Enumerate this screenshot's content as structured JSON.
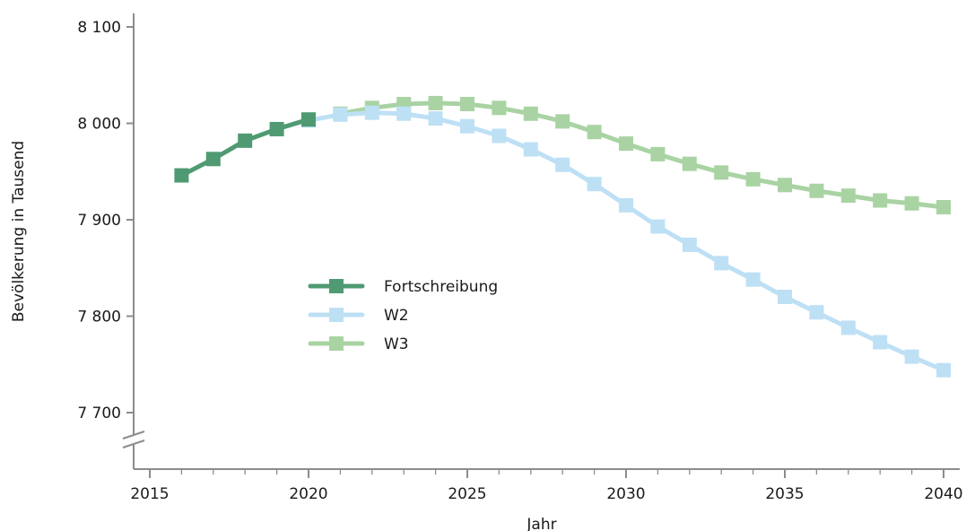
{
  "chart_data": {
    "type": "line",
    "title": "",
    "xlabel": "Jahr",
    "ylabel": "Bevölkerung in Tausend",
    "xlim": [
      2015,
      2040
    ],
    "ylim": [
      7700,
      8100
    ],
    "x_ticks": [
      2015,
      2020,
      2025,
      2030,
      2035,
      2040
    ],
    "x_tick_labels": [
      "2015",
      "2020",
      "2025",
      "2030",
      "2035",
      "2040"
    ],
    "y_ticks": [
      7700,
      7800,
      7900,
      8000,
      8100
    ],
    "y_tick_labels": [
      "7 700",
      "7 800",
      "7 900",
      "8 000",
      "8 100"
    ],
    "y_axis_break": true,
    "grid": false,
    "legend_position": "center-left",
    "series": [
      {
        "name": "Fortschreibung",
        "color": "#4f9a72",
        "x": [
          2016,
          2017,
          2018,
          2019,
          2020
        ],
        "values": [
          7946,
          7963,
          7982,
          7994,
          8004
        ]
      },
      {
        "name": "W2",
        "color": "#bde0f5",
        "x": [
          2020,
          2021,
          2022,
          2023,
          2024,
          2025,
          2026,
          2027,
          2028,
          2029,
          2030,
          2031,
          2032,
          2033,
          2034,
          2035,
          2036,
          2037,
          2038,
          2039,
          2040
        ],
        "values": [
          8003,
          8009,
          8011,
          8010,
          8005,
          7997,
          7987,
          7973,
          7957,
          7937,
          7915,
          7893,
          7874,
          7855,
          7838,
          7820,
          7804,
          7788,
          7773,
          7758,
          7744
        ]
      },
      {
        "name": "W3",
        "color": "#a9d3a3",
        "x": [
          2021,
          2022,
          2023,
          2024,
          2025,
          2026,
          2027,
          2028,
          2029,
          2030,
          2031,
          2032,
          2033,
          2034,
          2035,
          2036,
          2037,
          2038,
          2039,
          2040
        ],
        "values": [
          8010,
          8016,
          8020,
          8021,
          8020,
          8016,
          8010,
          8002,
          7991,
          7979,
          7968,
          7958,
          7949,
          7942,
          7936,
          7930,
          7925,
          7920,
          7917,
          7913
        ]
      }
    ]
  }
}
